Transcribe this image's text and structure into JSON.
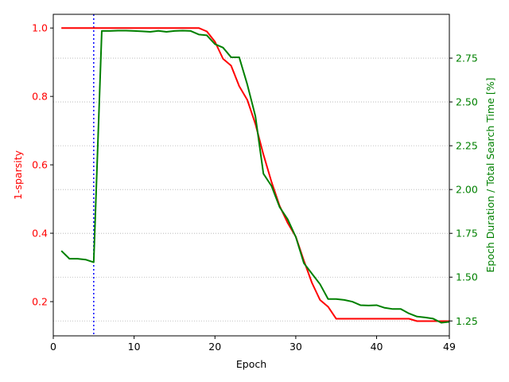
{
  "chart_data": {
    "type": "line",
    "xlabel": "Epoch",
    "ylabel_left": "1-sparsity",
    "ylabel_right": "Epoch Duration / Total Search Time [%]",
    "xlim": [
      0,
      49
    ],
    "ylim_left": [
      0.1,
      1.04
    ],
    "ylim_right": [
      1.165,
      3.0
    ],
    "xticks": [
      0,
      10,
      20,
      30,
      40,
      49
    ],
    "yticks_left": [
      "0.2",
      "0.4",
      "0.6",
      "0.8",
      "1.0"
    ],
    "yticks_right": [
      "1.25",
      "1.50",
      "1.75",
      "2.00",
      "2.25",
      "2.50",
      "2.75"
    ],
    "grid": "horizontal dotted lines at right-axis ticks",
    "legend": "none",
    "vline": {
      "x": 5,
      "style": "dotted",
      "color": "#0000ff"
    },
    "colors": {
      "left_axis": "#ff0000",
      "right_axis": "#008000",
      "vline": "#0000ff"
    },
    "series": [
      {
        "axis": "left",
        "color": "#ff0000",
        "x": [
          1,
          2,
          3,
          4,
          5,
          6,
          7,
          8,
          9,
          10,
          11,
          12,
          13,
          14,
          15,
          16,
          17,
          18,
          19,
          20,
          21,
          22,
          23,
          24,
          25,
          26,
          27,
          28,
          29,
          30,
          31,
          32,
          33,
          34,
          35,
          36,
          37,
          38,
          39,
          40,
          41,
          42,
          43,
          44,
          45,
          46,
          47,
          48,
          49
        ],
        "values": [
          1.0,
          1.0,
          1.0,
          1.0,
          1.0,
          1.0,
          1.0,
          1.0,
          1.0,
          1.0,
          1.0,
          1.0,
          1.0,
          1.0,
          1.0,
          1.0,
          1.0,
          1.0,
          0.99,
          0.96,
          0.91,
          0.89,
          0.83,
          0.79,
          0.72,
          0.63,
          0.55,
          0.48,
          0.43,
          0.39,
          0.32,
          0.255,
          0.205,
          0.185,
          0.15,
          0.15,
          0.15,
          0.15,
          0.15,
          0.15,
          0.15,
          0.15,
          0.15,
          0.15,
          0.143,
          0.143,
          0.143,
          0.143,
          0.143
        ]
      },
      {
        "axis": "right",
        "color": "#008000",
        "x": [
          1,
          2,
          3,
          4,
          5,
          6,
          7,
          8,
          9,
          10,
          11,
          12,
          13,
          14,
          15,
          16,
          17,
          18,
          19,
          20,
          21,
          22,
          23,
          24,
          25,
          26,
          27,
          28,
          29,
          30,
          31,
          32,
          33,
          34,
          35,
          36,
          37,
          38,
          39,
          40,
          41,
          42,
          43,
          44,
          45,
          46,
          47,
          48,
          49
        ],
        "values": [
          1.65,
          1.605,
          1.605,
          1.6,
          1.585,
          2.905,
          2.905,
          2.907,
          2.907,
          2.905,
          2.903,
          2.9,
          2.906,
          2.9,
          2.905,
          2.907,
          2.905,
          2.885,
          2.88,
          2.83,
          2.81,
          2.755,
          2.755,
          2.6,
          2.42,
          2.09,
          2.02,
          1.9,
          1.83,
          1.73,
          1.58,
          1.52,
          1.46,
          1.375,
          1.375,
          1.37,
          1.36,
          1.34,
          1.338,
          1.34,
          1.325,
          1.318,
          1.318,
          1.293,
          1.275,
          1.27,
          1.263,
          1.24,
          1.245
        ]
      }
    ]
  }
}
